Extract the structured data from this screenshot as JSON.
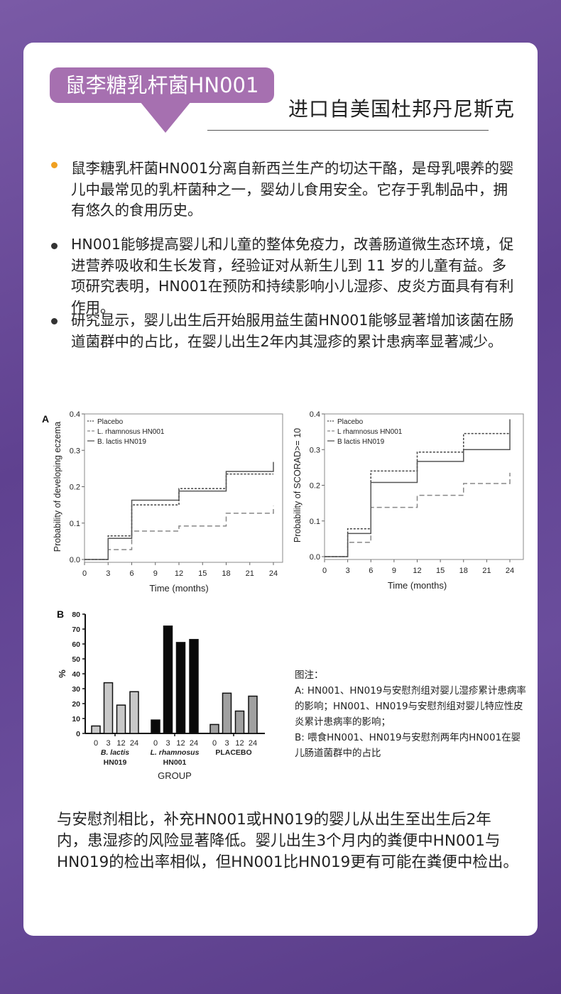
{
  "header": {
    "badge": "鼠李糖乳杆菌HN001",
    "subtitle": "进口自美国杜邦丹尼斯克",
    "badge_color": "#a670b0"
  },
  "bullets": [
    {
      "text": "鼠李糖乳杆菌HN001分离自新西兰生产的切达干酪，是母乳喂养的婴儿中最常见的乳杆菌种之一，婴幼儿食用安全。它存于乳制品中，拥有悠久的食用历史。",
      "dot_color": "#f0a020"
    },
    {
      "text": "HN001能够提高婴儿和儿童的整体免疫力，改善肠道微生态环境，促进营养吸收和生长发育，经验证对从新生儿到 11 岁的儿童有益。多项研究表明，HN001在预防和持续影响小儿湿疹、皮炎方面具有有利作用。",
      "dot_color": "#333333"
    },
    {
      "text": "研究显示，婴儿出生后开始服用益生菌HN001能够显著增加该菌在肠道菌群中的占比，在婴儿出生2年内其湿疹的累计患病率显著减少。",
      "dot_color": "#333333"
    }
  ],
  "caption": {
    "title": "图注：",
    "lines": [
      "A: HN001、HN019与安慰剂组对婴儿湿疹累计患病率的影响；HN001、HN019与安慰剂组对婴儿特应性皮炎累计患病率的影响；",
      "B: 喂食HN001、HN019与安慰剂两年内HN001在婴儿肠道菌群中的占比"
    ]
  },
  "bottom_text": "与安慰剂相比，补充HN001或HN019的婴儿从出生至出生后2年内，患湿疹的风险显著降低。婴儿出生3个月内的粪便中HN001与HN019的检出率相似，但HN001比HN019更有可能在粪便中检出。",
  "chart_data": [
    {
      "type": "line",
      "panel": "A",
      "step": true,
      "xlabel": "Time (months)",
      "ylabel": "Probability of developing eczema",
      "xlim": [
        0,
        24
      ],
      "ylim": [
        0,
        0.4
      ],
      "xticks": [
        0,
        3,
        6,
        9,
        12,
        15,
        18,
        21,
        24
      ],
      "yticks": [
        "0.0",
        "0.1",
        "0.2",
        "0.3",
        "0.4"
      ],
      "legend": "top-left",
      "x": [
        0,
        3,
        6,
        12,
        18,
        24
      ],
      "series": [
        {
          "name": "Placebo",
          "style": "dotted",
          "values": [
            0,
            0.065,
            0.15,
            0.195,
            0.235,
            0.235
          ]
        },
        {
          "name": "L. rhamnosus HN001",
          "style": "dashed",
          "values": [
            0,
            0.027,
            0.078,
            0.092,
            0.127,
            0.147
          ]
        },
        {
          "name": "B. lactis HN019",
          "style": "solid",
          "values": [
            0,
            0.058,
            0.163,
            0.188,
            0.242,
            0.268
          ]
        }
      ]
    },
    {
      "type": "line",
      "panel": "",
      "step": true,
      "xlabel": "Time (months)",
      "ylabel": "Probability of SCORAD>= 10",
      "xlim": [
        0,
        24
      ],
      "ylim": [
        0,
        0.4
      ],
      "xticks": [
        0,
        3,
        6,
        9,
        12,
        15,
        18,
        21,
        24
      ],
      "yticks": [
        "0.0",
        "0.1",
        "0.2",
        "0.3",
        "0.4"
      ],
      "legend": "top-left",
      "x": [
        0,
        3,
        6,
        12,
        18,
        24
      ],
      "series": [
        {
          "name": "Placebo",
          "style": "dotted",
          "values": [
            0,
            0.078,
            0.24,
            0.293,
            0.345,
            0.345
          ]
        },
        {
          "name": "L rhamnosus HN001",
          "style": "dashed",
          "values": [
            0,
            0.04,
            0.138,
            0.172,
            0.205,
            0.235
          ]
        },
        {
          "name": "B lactis HN019",
          "style": "solid",
          "values": [
            0,
            0.065,
            0.208,
            0.267,
            0.3,
            0.385
          ]
        }
      ]
    },
    {
      "type": "bar",
      "panel": "B",
      "ylabel": "%",
      "xlabel": "GROUP",
      "ylim": [
        0,
        80
      ],
      "yticks": [
        0,
        10,
        20,
        30,
        40,
        50,
        60,
        70,
        80
      ],
      "categories": [
        "0",
        "3",
        "12",
        "24"
      ],
      "groups": [
        {
          "label_italic": "B. lactis",
          "label": "HN019",
          "color": "#c8c8c8",
          "values": [
            5,
            34,
            19,
            28
          ]
        },
        {
          "label_italic": "L. rhamnosus",
          "label": "HN001",
          "color": "#0a0a0a",
          "values": [
            9,
            72,
            61,
            63
          ]
        },
        {
          "label_italic": "",
          "label": "PLACEBO",
          "color": "#a0a0a0",
          "values": [
            6,
            27,
            15,
            25
          ]
        }
      ]
    }
  ]
}
